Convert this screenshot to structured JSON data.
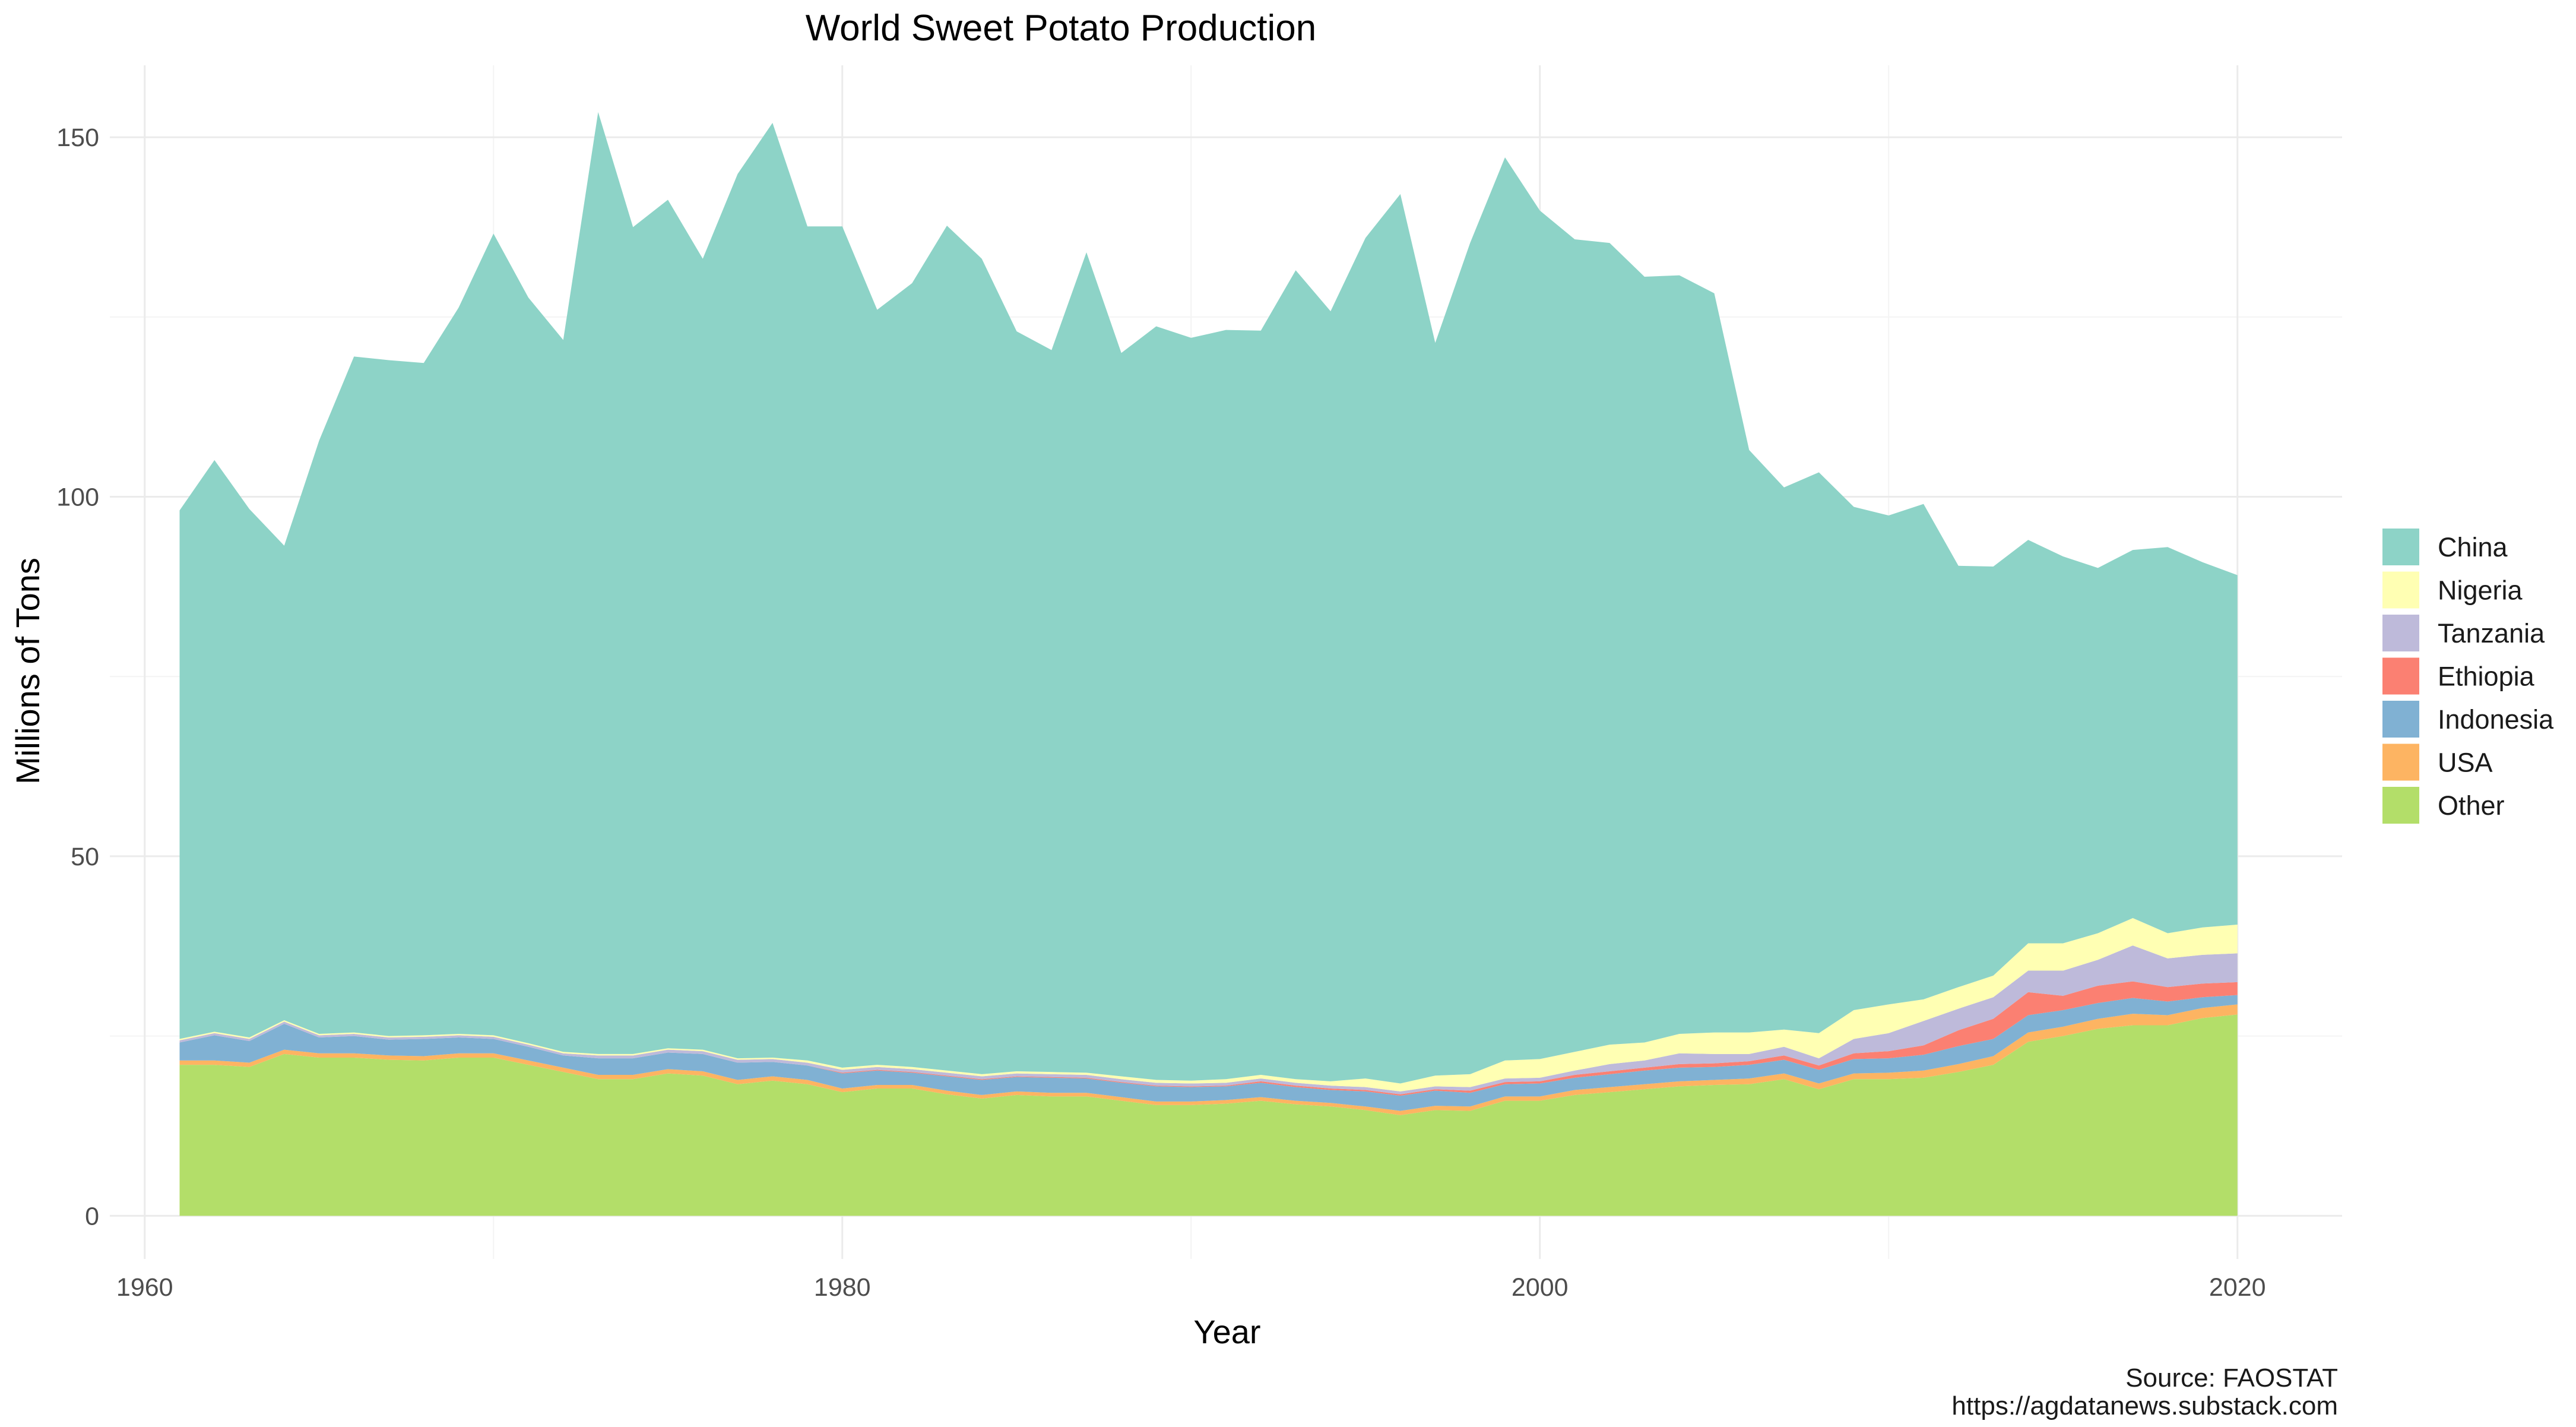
{
  "chart_data": {
    "type": "area",
    "stacked": true,
    "title": "World Sweet Potato Production",
    "xlabel": "Year",
    "ylabel": "Millions of Tons",
    "xlim": [
      1959,
      2023
    ],
    "ylim": [
      -6,
      160
    ],
    "x_ticks": [
      1960,
      1980,
      2000,
      2020
    ],
    "y_ticks": [
      0,
      50,
      100,
      150
    ],
    "grid": true,
    "legend_position": "right",
    "caption": [
      "Source: FAOSTAT",
      "https://agdatanews.substack.com"
    ],
    "x": [
      1961,
      1962,
      1963,
      1964,
      1965,
      1966,
      1967,
      1968,
      1969,
      1970,
      1971,
      1972,
      1973,
      1974,
      1975,
      1976,
      1977,
      1978,
      1979,
      1980,
      1981,
      1982,
      1983,
      1984,
      1985,
      1986,
      1987,
      1988,
      1989,
      1990,
      1991,
      1992,
      1993,
      1994,
      1995,
      1996,
      1997,
      1998,
      1999,
      2000,
      2001,
      2002,
      2003,
      2004,
      2005,
      2006,
      2007,
      2008,
      2009,
      2010,
      2011,
      2012,
      2013,
      2014,
      2015,
      2016,
      2017,
      2018,
      2019,
      2020
    ],
    "series": [
      {
        "name": "Other",
        "color": "#b3de69",
        "values": [
          21,
          21,
          20.7,
          22.5,
          22,
          22,
          21.7,
          21.6,
          22,
          22,
          21,
          20,
          19,
          19,
          19.8,
          19.5,
          18.3,
          18.8,
          18.3,
          17.2,
          17.7,
          17.7,
          16.9,
          16.3,
          16.8,
          16.6,
          16.6,
          16,
          15.4,
          15.4,
          15.6,
          16,
          15.5,
          15.2,
          14.7,
          14,
          14.7,
          14.6,
          16,
          16,
          16.8,
          17.2,
          17.6,
          18,
          18.2,
          18.3,
          19,
          17.6,
          19,
          19,
          19.2,
          20,
          21,
          24.2,
          25,
          26,
          26.5,
          26.5,
          27.5,
          28
        ]
      },
      {
        "name": "USA",
        "color": "#fdb462",
        "values": [
          0.6,
          0.6,
          0.6,
          0.6,
          0.6,
          0.6,
          0.6,
          0.6,
          0.6,
          0.6,
          0.6,
          0.6,
          0.6,
          0.6,
          0.6,
          0.6,
          0.6,
          0.6,
          0.6,
          0.5,
          0.5,
          0.5,
          0.5,
          0.5,
          0.5,
          0.5,
          0.5,
          0.5,
          0.5,
          0.5,
          0.5,
          0.5,
          0.5,
          0.5,
          0.5,
          0.6,
          0.6,
          0.6,
          0.6,
          0.6,
          0.7,
          0.7,
          0.7,
          0.7,
          0.7,
          0.8,
          0.8,
          0.8,
          0.8,
          0.9,
          1.0,
          1.1,
          1.2,
          1.3,
          1.3,
          1.4,
          1.6,
          1.4,
          1.4,
          1.4
        ]
      },
      {
        "name": "Indonesia",
        "color": "#80b1d3",
        "values": [
          2.5,
          3.5,
          3,
          3.6,
          2.2,
          2.4,
          2.2,
          2.4,
          2.2,
          2,
          1.9,
          1.7,
          2.3,
          2.3,
          2.3,
          2.4,
          2.4,
          2.0,
          2.0,
          2.1,
          2.0,
          1.7,
          2.0,
          2.1,
          2.0,
          2.1,
          2.0,
          2.0,
          2.1,
          2.0,
          1.9,
          2.0,
          1.9,
          1.8,
          2.1,
          2.1,
          2.1,
          1.9,
          1.7,
          1.8,
          1.7,
          1.8,
          1.9,
          1.9,
          1.8,
          1.9,
          1.9,
          1.9,
          2.0,
          2.0,
          2.2,
          2.5,
          2.4,
          2.4,
          2.3,
          2.2,
          2.2,
          1.9,
          1.5,
          1.3
        ]
      },
      {
        "name": "Ethiopia",
        "color": "#fb8072",
        "values": [
          0,
          0,
          0,
          0,
          0,
          0,
          0,
          0,
          0,
          0,
          0,
          0,
          0,
          0,
          0,
          0,
          0,
          0,
          0,
          0.1,
          0.1,
          0.1,
          0.1,
          0.1,
          0.1,
          0.1,
          0.1,
          0.1,
          0.1,
          0.1,
          0.1,
          0.2,
          0.2,
          0.2,
          0.2,
          0.2,
          0.2,
          0.3,
          0.3,
          0.3,
          0.4,
          0.4,
          0.4,
          0.5,
          0.5,
          0.5,
          0.6,
          0.6,
          0.8,
          1.0,
          1.3,
          2.2,
          2.8,
          3.2,
          2.0,
          2.4,
          2.3,
          2.0,
          1.9,
          1.8
        ]
      },
      {
        "name": "Tanzania",
        "color": "#bebada",
        "values": [
          0.3,
          0.3,
          0.3,
          0.3,
          0.3,
          0.3,
          0.3,
          0.3,
          0.3,
          0.3,
          0.3,
          0.3,
          0.4,
          0.4,
          0.4,
          0.4,
          0.4,
          0.4,
          0.4,
          0.4,
          0.4,
          0.4,
          0.4,
          0.4,
          0.4,
          0.4,
          0.4,
          0.4,
          0.4,
          0.4,
          0.4,
          0.4,
          0.4,
          0.4,
          0.4,
          0.4,
          0.4,
          0.5,
          0.5,
          0.5,
          0.6,
          1.0,
          1.0,
          1.5,
          1.3,
          1.0,
          1.2,
          1.0,
          2.0,
          2.5,
          3.4,
          3.0,
          3.0,
          3.0,
          3.5,
          3.6,
          5.0,
          4.0,
          4.0,
          4.0
        ]
      },
      {
        "name": "Nigeria",
        "color": "#ffffb3",
        "values": [
          0.2,
          0.2,
          0.2,
          0.2,
          0.2,
          0.2,
          0.2,
          0.2,
          0.2,
          0.2,
          0.2,
          0.2,
          0.2,
          0.2,
          0.2,
          0.2,
          0.2,
          0.2,
          0.3,
          0.3,
          0.3,
          0.3,
          0.3,
          0.3,
          0.3,
          0.3,
          0.3,
          0.4,
          0.4,
          0.4,
          0.5,
          0.5,
          0.5,
          0.6,
          1.2,
          1.1,
          1.5,
          1.8,
          2.5,
          2.6,
          2.6,
          2.7,
          2.5,
          2.7,
          3.0,
          3.0,
          2.4,
          3.5,
          4.0,
          4.0,
          3.0,
          3.0,
          3.0,
          3.8,
          3.8,
          3.7,
          3.8,
          3.5,
          3.8,
          4.0
        ]
      },
      {
        "name": "China",
        "color": "#8dd3c7",
        "values": [
          73.5,
          79.5,
          73.5,
          66,
          82.5,
          94,
          94,
          93.5,
          101,
          111.5,
          103.7,
          99,
          131,
          115,
          118,
          110,
          123,
          130,
          116,
          117,
          105,
          109,
          117.5,
          113.4,
          102.9,
          100.4,
          114.1,
          100.6,
          104.8,
          103.3,
          104.2,
          103.5,
          112.5,
          107.1,
          116.9,
          123.7,
          101.9,
          115.6,
          125.6,
          118,
          113,
          111.5,
          106.5,
          105.5,
          102.8,
          81,
          75.4,
          78,
          70,
          68,
          68.9,
          58.6,
          56.9,
          56.1,
          53.8,
          50.8,
          51.2,
          53.7,
          50.8,
          48.6
        ]
      }
    ]
  }
}
